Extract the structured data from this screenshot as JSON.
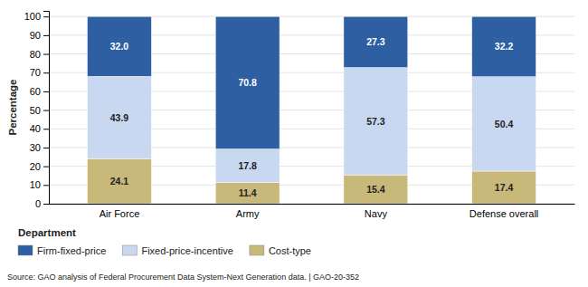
{
  "chart_data": {
    "type": "bar",
    "stacked": true,
    "categories": [
      "Air Force",
      "Army",
      "Navy",
      "Defense overall"
    ],
    "series": [
      {
        "name": "Cost-type",
        "color": "#c8b87a",
        "values": [
          24.1,
          11.4,
          15.4,
          17.4
        ]
      },
      {
        "name": "Fixed-price-incentive",
        "color": "#c8d8f0",
        "values": [
          43.9,
          17.8,
          57.3,
          50.4
        ]
      },
      {
        "name": "Firm-fixed-price",
        "color": "#2e5fa3",
        "values": [
          32.0,
          70.8,
          27.3,
          32.2
        ],
        "value_labels": [
          "32.0",
          "70.8",
          "27.3",
          "32.2"
        ]
      }
    ],
    "ylabel": "Percentage",
    "xlabel": "Department",
    "ylim": [
      0,
      103
    ],
    "yticks": [
      0,
      10,
      20,
      30,
      40,
      50,
      60,
      70,
      80,
      90,
      100
    ],
    "grid": true,
    "data_labels": true,
    "legend": "bottom",
    "annotations": [
      "Source: GAO analysis of Federal Procurement Data System-Next Generation data.  |  GAO-20-352"
    ]
  }
}
